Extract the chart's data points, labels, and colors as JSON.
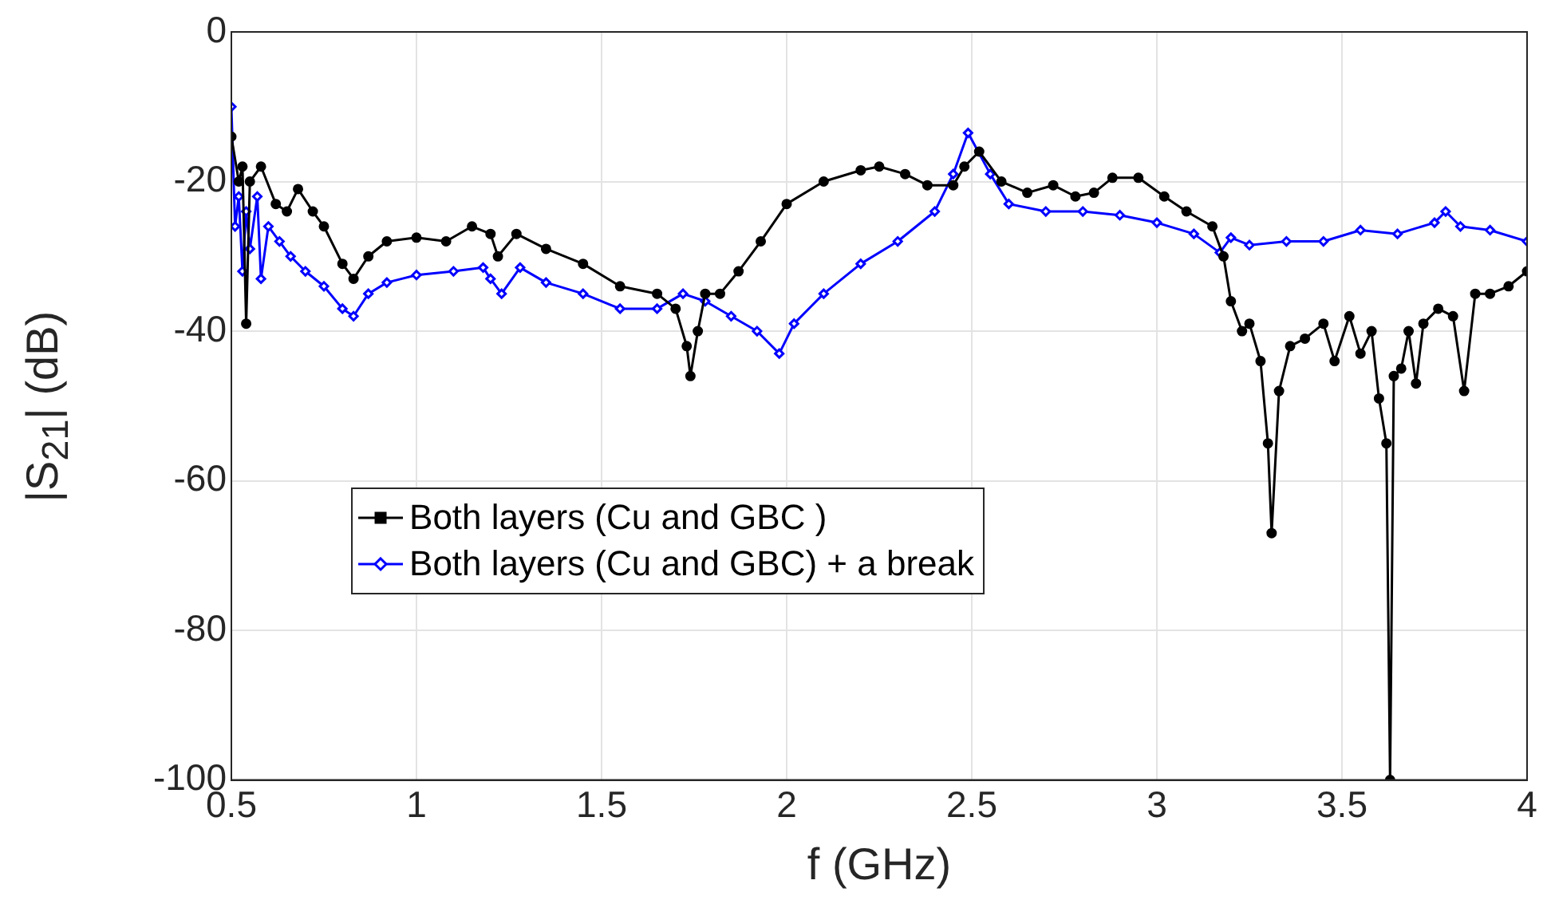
{
  "chart_data": {
    "type": "line",
    "xlabel": "f (GHz)",
    "ylabel": "|S$_{21}$| (dB)",
    "xlim": [
      0.5,
      4
    ],
    "xticks": [
      0.5,
      1,
      1.5,
      2,
      2.5,
      3,
      3.5,
      4
    ],
    "ylim": [
      -100,
      0
    ],
    "yticks": [
      -100,
      -80,
      -60,
      -40,
      -20,
      0
    ],
    "grid": true,
    "legend": "left",
    "line_style": "solid",
    "series": [
      {
        "name": "Both layers (Cu and GBC )",
        "color": "#000000",
        "marker": "circle",
        "x": [
          0.5,
          0.52,
          0.53,
          0.54,
          0.55,
          0.58,
          0.62,
          0.65,
          0.68,
          0.72,
          0.75,
          0.8,
          0.83,
          0.87,
          0.92,
          1.0,
          1.08,
          1.15,
          1.2,
          1.22,
          1.27,
          1.35,
          1.45,
          1.55,
          1.65,
          1.7,
          1.73,
          1.74,
          1.76,
          1.78,
          1.82,
          1.87,
          1.93,
          2.0,
          2.1,
          2.2,
          2.25,
          2.32,
          2.38,
          2.45,
          2.48,
          2.52,
          2.58,
          2.65,
          2.72,
          2.78,
          2.83,
          2.88,
          2.95,
          3.02,
          3.08,
          3.15,
          3.18,
          3.2,
          3.23,
          3.25,
          3.28,
          3.3,
          3.31,
          3.33,
          3.36,
          3.4,
          3.45,
          3.48,
          3.52,
          3.55,
          3.58,
          3.6,
          3.62,
          3.63,
          3.64,
          3.66,
          3.68,
          3.7,
          3.72,
          3.76,
          3.8,
          3.83,
          3.86,
          3.9,
          3.95,
          4.0
        ],
        "values": [
          -14,
          -20,
          -18,
          -39,
          -20,
          -18,
          -23,
          -24,
          -21,
          -24,
          -26,
          -31,
          -33,
          -30,
          -28,
          -27.5,
          -28,
          -26,
          -27,
          -30,
          -27,
          -29,
          -31,
          -34,
          -35,
          -37,
          -42,
          -46,
          -40,
          -35,
          -35,
          -32,
          -28,
          -23,
          -20,
          -18.5,
          -18,
          -19,
          -20.5,
          -20.5,
          -18,
          -16,
          -20,
          -21.5,
          -20.5,
          -22,
          -21.5,
          -19.5,
          -19.5,
          -22,
          -24,
          -26,
          -30,
          -36,
          -40,
          -39,
          -44,
          -55,
          -67,
          -48,
          -42,
          -41,
          -39,
          -44,
          -38,
          -43,
          -40,
          -49,
          -55,
          -100,
          -46,
          -45,
          -40,
          -47,
          -39,
          -37,
          -38,
          -48,
          -35,
          -35,
          -34,
          -32
        ]
      },
      {
        "name": "Both layers (Cu and GBC) + a break",
        "color": "#0000ff",
        "marker": "diamond",
        "x": [
          0.5,
          0.51,
          0.52,
          0.53,
          0.54,
          0.55,
          0.57,
          0.58,
          0.6,
          0.63,
          0.66,
          0.7,
          0.75,
          0.8,
          0.83,
          0.87,
          0.92,
          1.0,
          1.1,
          1.18,
          1.2,
          1.23,
          1.28,
          1.35,
          1.45,
          1.55,
          1.65,
          1.72,
          1.78,
          1.85,
          1.92,
          1.98,
          2.02,
          2.1,
          2.2,
          2.3,
          2.4,
          2.45,
          2.49,
          2.55,
          2.6,
          2.7,
          2.8,
          2.9,
          3.0,
          3.1,
          3.17,
          3.2,
          3.25,
          3.35,
          3.45,
          3.55,
          3.65,
          3.75,
          3.78,
          3.82,
          3.9,
          4.0
        ],
        "values": [
          -10,
          -26,
          -22,
          -32,
          -24,
          -29,
          -22,
          -33,
          -26,
          -28,
          -30,
          -32,
          -34,
          -37,
          -38,
          -35,
          -33.5,
          -32.5,
          -32,
          -31.5,
          -33,
          -35,
          -31.5,
          -33.5,
          -35,
          -37,
          -37,
          -35,
          -36,
          -38,
          -40,
          -43,
          -39,
          -35,
          -31,
          -28,
          -24,
          -19,
          -13.5,
          -19,
          -23,
          -24,
          -24,
          -24.5,
          -25.5,
          -27,
          -29.5,
          -27.5,
          -28.5,
          -28,
          -28,
          -26.5,
          -27,
          -25.5,
          -24,
          -26,
          -26.5,
          -28
        ]
      }
    ]
  }
}
